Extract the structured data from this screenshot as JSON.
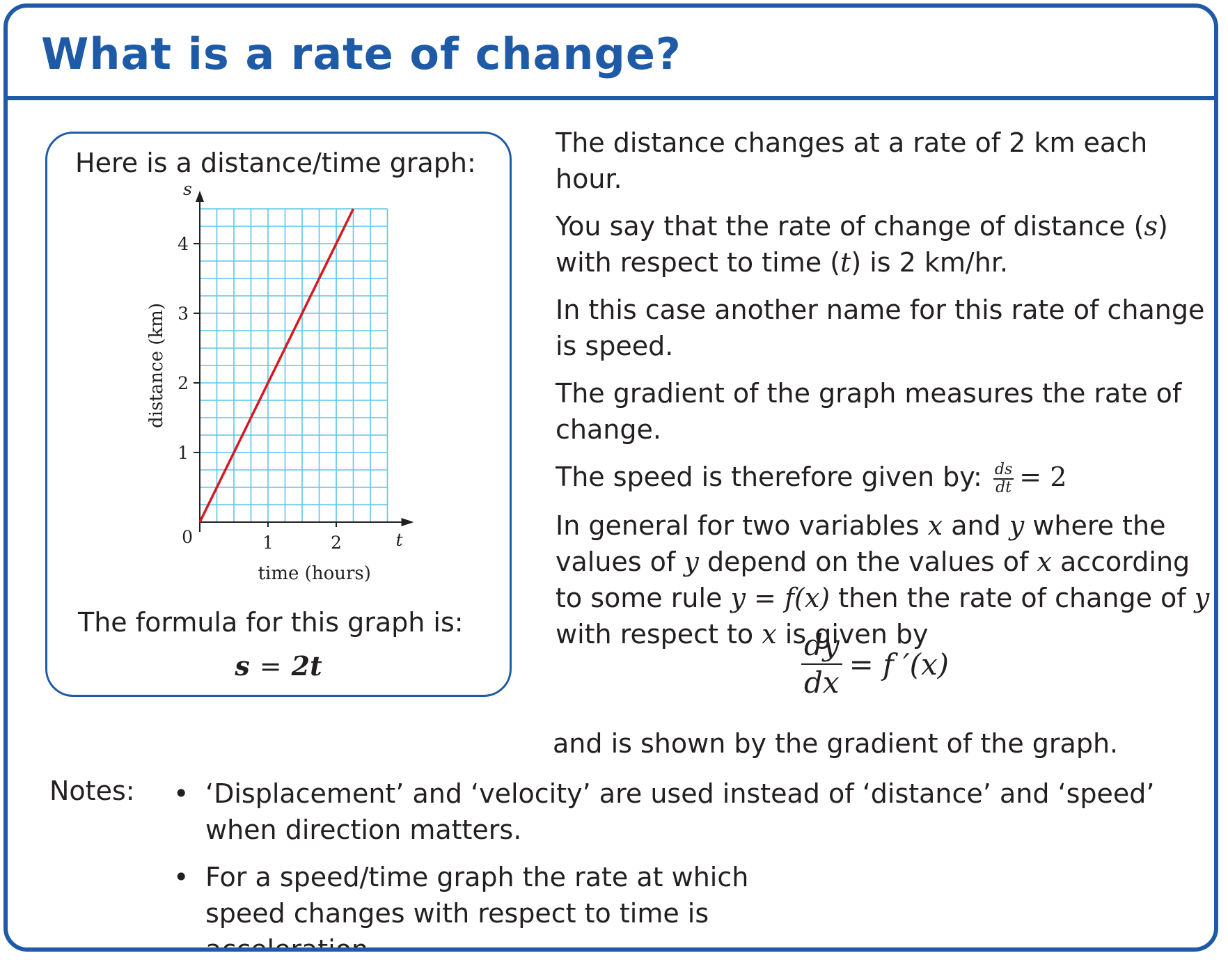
{
  "title": "What is a rate of change?",
  "graph_box": {
    "caption": "Here is a distance/time graph:",
    "formula_caption": "The formula for this graph is:",
    "formula": {
      "lhs": "s",
      "op": "=",
      "rhs": "2t"
    }
  },
  "chart_data": {
    "type": "line",
    "xlabel": "time (hours)",
    "ylabel": "distance (km)",
    "x_axis_symbol": "t",
    "y_axis_symbol": "s",
    "origin_label": "0",
    "xlim": [
      0,
      2.75
    ],
    "ylim": [
      0,
      4.5
    ],
    "x_ticks": [
      1,
      2
    ],
    "y_ticks": [
      1,
      2,
      3,
      4
    ],
    "grid": true,
    "line_color": "#d71920",
    "grid_color": "#5bc6ea",
    "series": [
      {
        "x": [
          0,
          2.25
        ],
        "y": [
          0,
          4.5
        ]
      }
    ]
  },
  "right_text": {
    "p1": "The distance changes at a rate of 2 km each hour.",
    "p2_a": "You say that the rate of change of distance (",
    "p2_s": "s",
    "p2_b": ") with respect to time (",
    "p2_t": "t",
    "p2_c": ") is 2 km/hr.",
    "p3": "In this case another name for this rate of change is speed.",
    "p4": "The gradient of the graph measures the rate of change.",
    "p5_text": "The speed is therefore given by:",
    "p5_num": "ds",
    "p5_den": "dt",
    "p5_rhs": "= 2",
    "p6_1": "In general for two variables ",
    "p6_x": "x",
    "p6_2": " and ",
    "p6_y": "y",
    "p6_3": " where the values of ",
    "p6_y2": "y",
    "p6_4": " depend on the values of ",
    "p6_x2": "x",
    "p6_5": " according to some rule ",
    "p6_rule": "y = f(x)",
    "p6_6": " then the rate of change of ",
    "p6_y3": "y",
    "p6_7": " with respect to ",
    "p6_x3": "x",
    "p6_8": " is given by"
  },
  "display_equation": {
    "num": "dy",
    "den": "dx",
    "rhs": "= f ′(x)"
  },
  "closing": "and is shown by the gradient of the graph.",
  "notes": {
    "label": "Notes:",
    "bullet": "•",
    "items": [
      "‘Displacement’ and ‘velocity’ are used instead of ‘distance’ and ‘speed’ when direction matters.",
      "For a speed/time graph the rate at which speed changes with respect to time is acceleration."
    ]
  },
  "colors": {
    "accent": "#1f5aa6",
    "text": "#231f20"
  }
}
